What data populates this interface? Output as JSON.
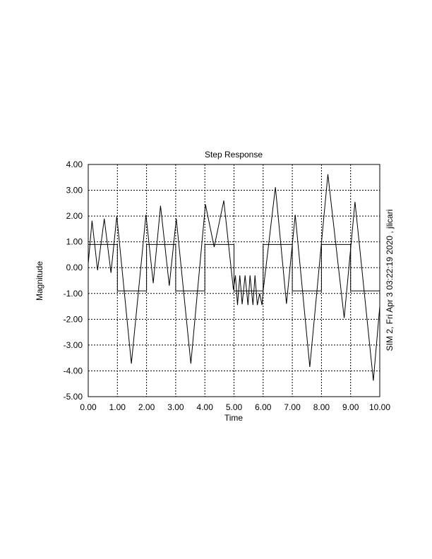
{
  "chart_data": {
    "type": "line",
    "title": "Step Response",
    "xlabel": "Time",
    "ylabel": "Magnitude",
    "side_label": "SIM 2, Fri Apr  3 03:22:19 2020 , jlicari",
    "xlim": [
      0,
      10
    ],
    "ylim": [
      -5,
      4
    ],
    "grid": true,
    "x_ticks": [
      "0.00",
      "1.00",
      "2.00",
      "3.00",
      "4.00",
      "5.00",
      "6.00",
      "7.00",
      "8.00",
      "9.00",
      "10.00"
    ],
    "y_ticks": [
      "4.00",
      "3.00",
      "2.00",
      "1.00",
      "0.00",
      "-1.00",
      "-2.00",
      "-3.00",
      "-4.00",
      "-5.00"
    ],
    "series": [
      {
        "x": [
          0,
          0.13,
          0.32,
          0.55,
          0.78,
          0.98,
          1.48,
          1.98,
          2.23,
          2.48,
          2.78,
          3.02,
          3.52,
          4.02,
          4.32,
          4.65,
          4.98,
          5.05,
          5.12,
          5.2,
          5.28,
          5.38,
          5.48,
          5.55,
          5.65,
          5.72,
          5.8,
          5.88,
          5.96,
          6.0,
          6.42,
          6.8,
          7.1,
          7.6,
          8.22,
          8.78,
          9.15,
          9.78,
          10.0
        ],
        "y": [
          0.15,
          1.82,
          -0.1,
          1.9,
          -0.2,
          2.0,
          -3.72,
          2.05,
          -0.6,
          2.4,
          -0.7,
          1.9,
          -3.72,
          2.45,
          0.8,
          2.6,
          -0.85,
          -0.3,
          -1.45,
          -0.3,
          -1.42,
          -0.3,
          -1.45,
          -0.3,
          -1.45,
          -0.3,
          -1.45,
          -1.0,
          -1.45,
          -0.9,
          3.12,
          -1.4,
          2.05,
          -3.85,
          3.62,
          -1.95,
          2.55,
          -4.38,
          -1.5
        ]
      },
      {
        "x": [
          0,
          1,
          1,
          2,
          2,
          3,
          3,
          4,
          4,
          5,
          5,
          6,
          6,
          7,
          7,
          8,
          8,
          9,
          9,
          10
        ],
        "y": [
          0.9,
          0.9,
          -0.9,
          -0.9,
          0.9,
          0.9,
          -0.9,
          -0.9,
          0.9,
          0.9,
          -0.9,
          -0.9,
          0.9,
          0.9,
          -0.9,
          -0.9,
          0.9,
          0.9,
          -0.9,
          -0.9
        ]
      }
    ]
  }
}
